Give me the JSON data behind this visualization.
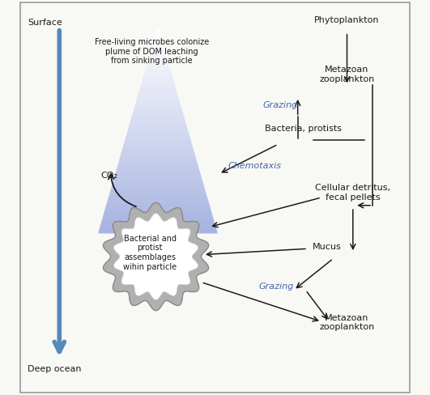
{
  "bg_color": "#f8f8f5",
  "border_color": "#999999",
  "text_color": "#1a1a1a",
  "blue_label_color": "#4466aa",
  "arrow_color": "#1a1a1a",
  "depth_arrow_color": "#5588bb",
  "figsize": [
    5.31,
    4.88
  ],
  "dpi": 100,
  "labels": {
    "surface": "Surface",
    "deep_ocean": "Deep ocean",
    "free_living": "Free-living microbes colonize\nplume of DOM leaching\nfrom sinking particle",
    "phytoplankton": "Phytoplankton",
    "metazoan_zoo_top": "Metazoan\nzooplankton",
    "grazing_top": "Grazing",
    "bacteria_protists": "Bacteria, protists",
    "chemotaxis": "Chemotaxis",
    "cellular_detritus": "Cellular detritus,\nfecal pellets",
    "mucus": "Mucus",
    "grazing_bottom": "Grazing",
    "metazoan_zoo_bottom": "Metazoan\nzooplankton",
    "co2": "CO₂",
    "particle": "Bacterial and\nprotist\nassemblages\nwihin particle"
  }
}
